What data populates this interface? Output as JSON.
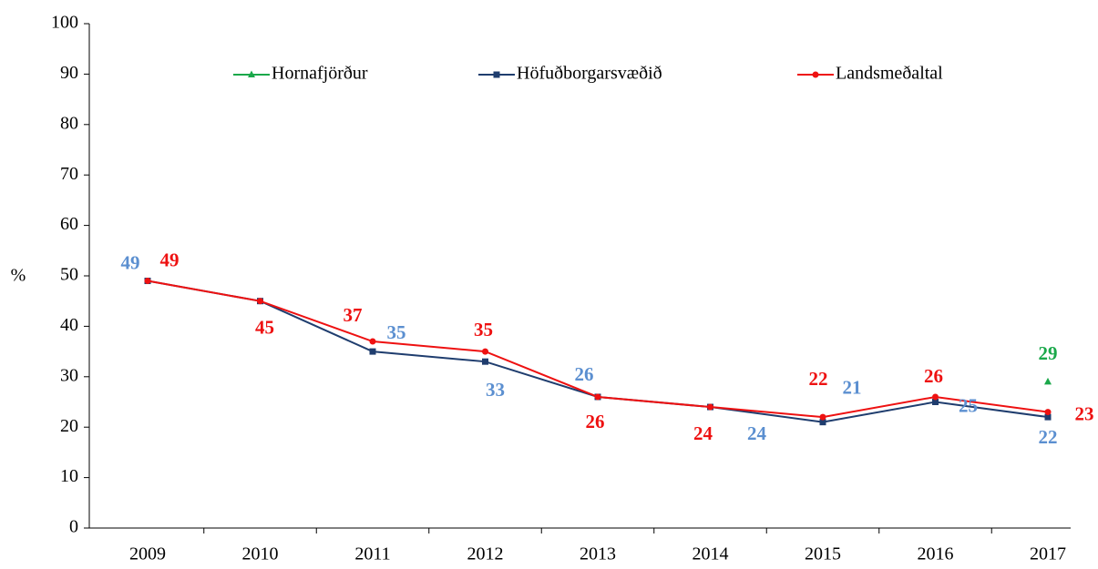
{
  "chart_data": {
    "type": "line",
    "y_label": "%",
    "categories": [
      "2009",
      "2010",
      "2011",
      "2012",
      "2013",
      "2014",
      "2015",
      "2016",
      "2017"
    ],
    "ylim": [
      0,
      100
    ],
    "yticks": [
      0,
      10,
      20,
      30,
      40,
      50,
      60,
      70,
      80,
      90,
      100
    ],
    "legend": "top",
    "series": [
      {
        "name": "Hornafjörður",
        "color": "#1aa84a",
        "marker": "triangle",
        "values": [
          null,
          null,
          null,
          null,
          null,
          null,
          null,
          null,
          29
        ],
        "value_labels": [
          null,
          null,
          null,
          null,
          null,
          null,
          null,
          null,
          "29"
        ]
      },
      {
        "name": "Höfuðborgarsvæðið",
        "color": "#1f3d6e",
        "marker": "square",
        "values": [
          49,
          45,
          35,
          33,
          26,
          24,
          21,
          25,
          22
        ],
        "value_labels": [
          "49",
          null,
          "35",
          "33",
          "26",
          "24",
          "21",
          "25",
          "22"
        ]
      },
      {
        "name": "Landsmeðaltal",
        "color": "#ee1111",
        "marker": "circle",
        "values": [
          49,
          45,
          37,
          35,
          26,
          24,
          22,
          26,
          23
        ],
        "value_labels": [
          "49",
          "45",
          "37",
          "35",
          "26",
          "24",
          "22",
          "26",
          "23"
        ]
      }
    ]
  }
}
